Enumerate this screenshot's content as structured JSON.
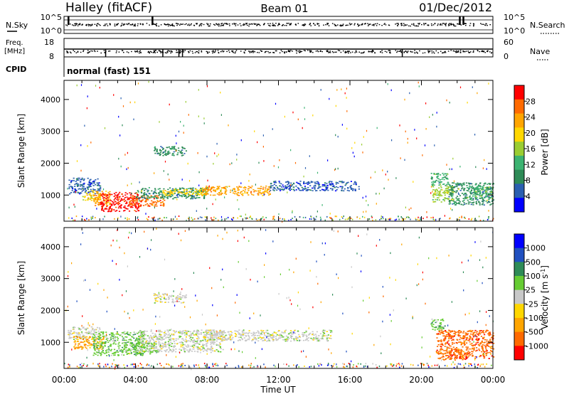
{
  "header": {
    "station": "Halley (fitACF)",
    "beam": "Beam 01",
    "date": "01/Dec/2012"
  },
  "panels": {
    "nsky": {
      "left_label": "N.Sky",
      "right_label": "N.Search",
      "left_ticks": [
        "10^5",
        "10^0"
      ],
      "right_ticks": [
        "10^5",
        "10^0"
      ]
    },
    "freq": {
      "left_label_line1": "Freq.",
      "left_label_line2": "[MHz]",
      "right_label": "Nave",
      "left_ticks": [
        "18",
        "8"
      ],
      "right_ticks": [
        "60",
        "0"
      ]
    },
    "cpid": {
      "label": "CPID",
      "text": "normal (fast) 151"
    }
  },
  "x_axis": {
    "label": "Time UT",
    "ticks": [
      "00:00",
      "04:00",
      "08:00",
      "12:00",
      "16:00",
      "20:00",
      "00:00"
    ]
  },
  "colors": {
    "power": [
      "#0000ff",
      "#2a5fb0",
      "#2e8b57",
      "#3cb371",
      "#9acd32",
      "#ffd700",
      "#ffa500",
      "#ff6a00",
      "#ff0000"
    ],
    "velocity": [
      "#0000ff",
      "#2050c0",
      "#2e8b57",
      "#66cc33",
      "#c8c8c8",
      "#ffd700",
      "#ffa500",
      "#ff6a00",
      "#ff0000"
    ]
  },
  "chart_data": [
    {
      "type": "heatmap",
      "title": "Power",
      "xlabel": "Time UT",
      "ylabel": "Slant Range [km]",
      "x_range_hours": [
        0,
        24
      ],
      "ylim": [
        180,
        4600
      ],
      "y_ticks": [
        "4000",
        "3000",
        "2000",
        "1000"
      ],
      "colorbar_label": "Power [dB]",
      "colorbar_ticks": [
        "28",
        "24",
        "20",
        "16",
        "12",
        "8",
        "4"
      ],
      "regions": [
        {
          "t0": 0.2,
          "t1": 2.0,
          "r0": 1050,
          "r1": 1550,
          "level": 1
        },
        {
          "t0": 1.0,
          "t1": 2.0,
          "r0": 850,
          "r1": 1150,
          "level": 5
        },
        {
          "t0": 1.6,
          "t1": 2.6,
          "r0": 650,
          "r1": 1150,
          "level": 6
        },
        {
          "t0": 2.0,
          "t1": 4.2,
          "r0": 500,
          "r1": 1100,
          "level": 8
        },
        {
          "t0": 3.6,
          "t1": 5.6,
          "r0": 650,
          "r1": 1000,
          "level": 7
        },
        {
          "t0": 4.0,
          "t1": 8.0,
          "r0": 900,
          "r1": 1250,
          "level": 2
        },
        {
          "t0": 5.5,
          "t1": 8.0,
          "r0": 1000,
          "r1": 1200,
          "level": 5
        },
        {
          "t0": 7.7,
          "t1": 11.5,
          "r0": 1000,
          "r1": 1300,
          "level": 6
        },
        {
          "t0": 11.5,
          "t1": 16.5,
          "r0": 1150,
          "r1": 1450,
          "level": 1
        },
        {
          "t0": 5.0,
          "t1": 6.8,
          "r0": 2250,
          "r1": 2550,
          "level": 2
        },
        {
          "t0": 20.5,
          "t1": 21.5,
          "r0": 1300,
          "r1": 1700,
          "level": 3
        },
        {
          "t0": 20.6,
          "t1": 21.8,
          "r0": 800,
          "r1": 1300,
          "level": 4
        },
        {
          "t0": 21.5,
          "t1": 24.0,
          "r0": 700,
          "r1": 1400,
          "level": 2
        },
        {
          "t0": 22.5,
          "t1": 24.0,
          "r0": 900,
          "r1": 1300,
          "level": 3
        }
      ]
    },
    {
      "type": "heatmap",
      "title": "Velocity",
      "xlabel": "Time UT",
      "ylabel": "Slant Range [km]",
      "x_range_hours": [
        0,
        24
      ],
      "ylim": [
        180,
        4600
      ],
      "y_ticks": [
        "4000",
        "3000",
        "2000",
        "1000"
      ],
      "colorbar_label": "Velocity [m s^-1]",
      "colorbar_ticks": [
        "1000",
        "500",
        "100",
        "25",
        "-25",
        "-100",
        "-500",
        "-1000"
      ],
      "regions": [
        {
          "t0": 0.2,
          "t1": 2.0,
          "r0": 1100,
          "r1": 1500,
          "level": 4
        },
        {
          "t0": 0.5,
          "t1": 2.2,
          "r0": 800,
          "r1": 1200,
          "level": 6
        },
        {
          "t0": 1.6,
          "t1": 4.5,
          "r0": 600,
          "r1": 1350,
          "level": 3
        },
        {
          "t0": 3.8,
          "t1": 5.2,
          "r0": 650,
          "r1": 1050,
          "level": 3
        },
        {
          "t0": 4.2,
          "t1": 9.0,
          "r0": 700,
          "r1": 1400,
          "level": 4
        },
        {
          "t0": 7.8,
          "t1": 15.0,
          "r0": 1050,
          "r1": 1400,
          "level": 4
        },
        {
          "t0": 5.0,
          "t1": 6.8,
          "r0": 2250,
          "r1": 2550,
          "level": 4
        },
        {
          "t0": 20.5,
          "t1": 21.3,
          "r0": 1400,
          "r1": 1750,
          "level": 3
        },
        {
          "t0": 20.8,
          "t1": 24.0,
          "r0": 500,
          "r1": 1400,
          "level": 7
        },
        {
          "t0": 21.0,
          "t1": 22.5,
          "r0": 450,
          "r1": 800,
          "level": 7
        }
      ]
    }
  ]
}
